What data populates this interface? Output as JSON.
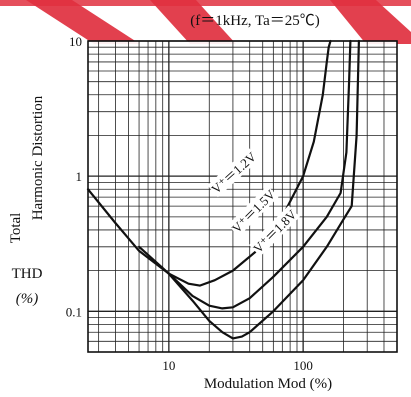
{
  "chart_data": {
    "type": "line",
    "title": "",
    "subtitle": "(f＝1kHz,  Ta＝25℃)",
    "xlabel": "Modulation   Mod  (%)",
    "ylabel": [
      "Total",
      "Harmonic Distortion"
    ],
    "ylabel_abbrev": "THD",
    "ylabel_unit": "(%)",
    "x_scale": "log",
    "y_scale": "log",
    "xlim": [
      2.5,
      500
    ],
    "ylim": [
      0.05,
      10
    ],
    "x_tick_labels": [
      "10",
      "100"
    ],
    "y_tick_labels": [
      "10",
      "1",
      "0.1"
    ],
    "grid": true,
    "series": [
      {
        "name": "V⁺＝1.2V",
        "x": [
          2.5,
          4,
          6,
          10,
          14,
          17,
          22,
          30,
          45,
          70,
          100,
          120,
          140,
          150,
          155,
          160
        ],
        "y": [
          0.8,
          0.45,
          0.28,
          0.19,
          0.16,
          0.155,
          0.17,
          0.2,
          0.28,
          0.5,
          1.0,
          1.8,
          4.0,
          7,
          9,
          10
        ]
      },
      {
        "name": "V⁺＝1.5V",
        "x": [
          6,
          10,
          15,
          20,
          25,
          30,
          40,
          60,
          100,
          150,
          190,
          210,
          220,
          225
        ],
        "y": [
          0.3,
          0.19,
          0.13,
          0.11,
          0.105,
          0.107,
          0.125,
          0.18,
          0.3,
          0.5,
          0.75,
          1.5,
          5,
          10
        ]
      },
      {
        "name": "V⁺＝1.8V",
        "x": [
          10,
          15,
          20,
          25,
          30,
          35,
          40,
          60,
          100,
          150,
          200,
          230,
          250,
          260
        ],
        "y": [
          0.19,
          0.12,
          0.085,
          0.07,
          0.063,
          0.065,
          0.07,
          0.1,
          0.17,
          0.3,
          0.48,
          0.6,
          2,
          10
        ]
      }
    ]
  },
  "banner": {
    "color": "#e0303f"
  }
}
